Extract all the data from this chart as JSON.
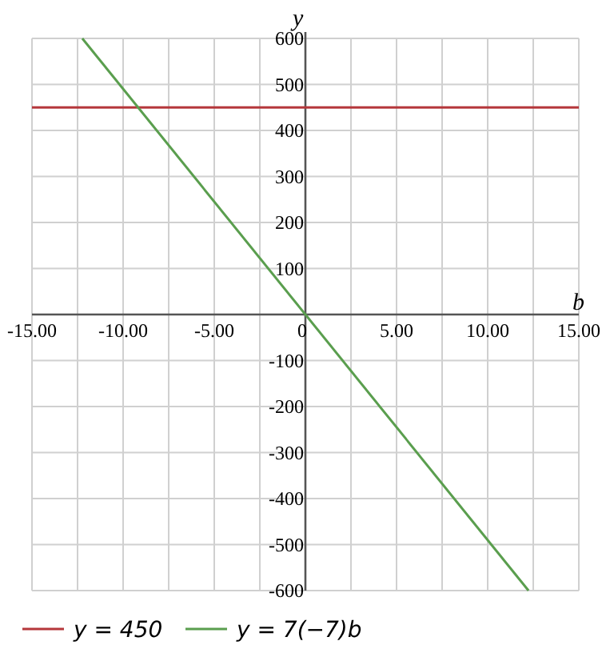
{
  "chart_data": {
    "type": "line",
    "xlabel": "b",
    "ylabel": "y",
    "xlim": [
      -15,
      15
    ],
    "ylim": [
      -600,
      600
    ],
    "xticks": [
      {
        "value": -15,
        "label": "-15.00"
      },
      {
        "value": -12.5,
        "label": null
      },
      {
        "value": -10,
        "label": "-10.00"
      },
      {
        "value": -7.5,
        "label": null
      },
      {
        "value": -5,
        "label": "-5.00"
      },
      {
        "value": -2.5,
        "label": null
      },
      {
        "value": 0,
        "label": "0"
      },
      {
        "value": 2.5,
        "label": null
      },
      {
        "value": 5,
        "label": "5.00"
      },
      {
        "value": 7.5,
        "label": null
      },
      {
        "value": 10,
        "label": "10.00"
      },
      {
        "value": 12.5,
        "label": null
      },
      {
        "value": 15,
        "label": "15.00"
      }
    ],
    "yticks": [
      -600,
      -500,
      -400,
      -300,
      -200,
      -100,
      {
        "value": 0,
        "label": null
      },
      100,
      200,
      300,
      400,
      500,
      600
    ],
    "grid": true,
    "legend": "bottom",
    "series": [
      {
        "name": "y = 450",
        "color": "#b5373b",
        "x": [
          -15,
          15
        ],
        "values": [
          450,
          450
        ]
      },
      {
        "name": "y = 7(−7)b",
        "color": "#5a9e4e",
        "x": [
          -12.24,
          12.24
        ],
        "values": [
          600,
          -600
        ]
      }
    ]
  }
}
